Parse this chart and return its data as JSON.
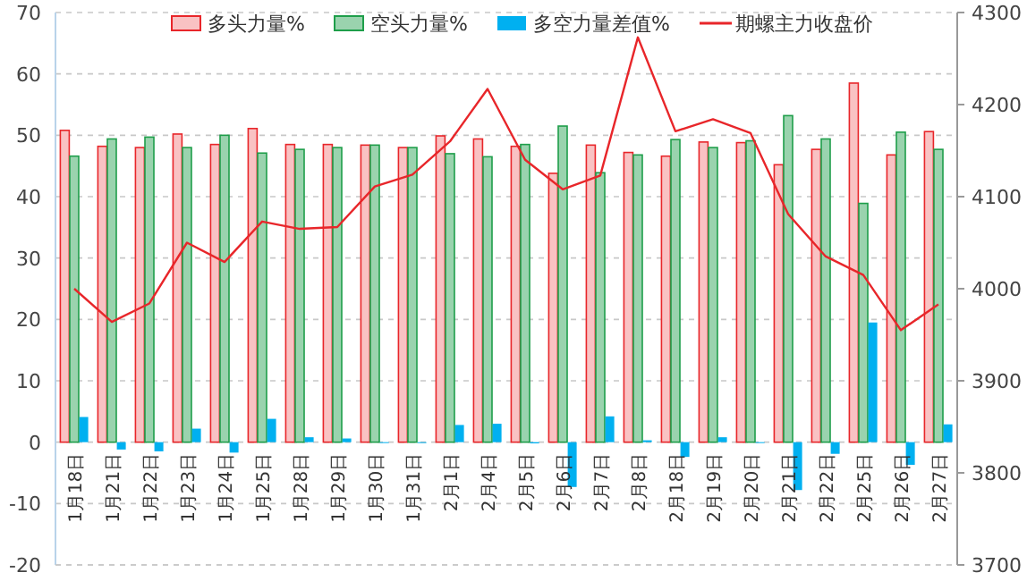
{
  "chart_data": {
    "type": "bar",
    "categories": [
      "1月18日",
      "1月21日",
      "1月22日",
      "1月23日",
      "1月24日",
      "1月25日",
      "1月28日",
      "1月29日",
      "1月30日",
      "1月31日",
      "2月1日",
      "2月4日",
      "2月5日",
      "2月6日",
      "2月7日",
      "2月8日",
      "2月18日",
      "2月19日",
      "2月20日",
      "2月21日",
      "2月22日",
      "2月25日",
      "2月26日",
      "2月27日"
    ],
    "series": [
      {
        "name": "多头力量%",
        "color": "#e8262a",
        "values": [
          50.8,
          48.2,
          48.0,
          50.2,
          48.5,
          51.1,
          48.5,
          48.5,
          48.4,
          48.0,
          49.9,
          49.4,
          48.2,
          43.8,
          48.4,
          47.2,
          46.6,
          48.9,
          48.8,
          45.2,
          47.7,
          58.5,
          46.8,
          50.6
        ]
      },
      {
        "name": "空头力量%",
        "color": "#1e9e4a",
        "values": [
          46.6,
          49.4,
          49.7,
          48.0,
          50.0,
          47.1,
          47.7,
          48.0,
          48.4,
          48.0,
          47.0,
          46.5,
          48.5,
          51.5,
          43.9,
          46.8,
          49.3,
          48.0,
          49.1,
          53.2,
          49.4,
          38.9,
          50.5,
          47.7
        ]
      },
      {
        "name": "多空力量差值%",
        "color": "#00b0f0",
        "values": [
          4.1,
          -1.2,
          -1.5,
          2.2,
          -1.7,
          3.8,
          0.8,
          0.6,
          -0.1,
          0.0,
          2.8,
          3.0,
          -0.2,
          -7.3,
          4.2,
          0.3,
          -2.4,
          0.8,
          -0.1,
          -7.8,
          -1.9,
          19.5,
          -3.7,
          2.9
        ]
      },
      {
        "name": "期螺主力收盘价",
        "color": "#e8262a",
        "type": "line",
        "axis": "y2",
        "values": [
          4000,
          3964,
          3984,
          4050,
          4029,
          4073,
          4065,
          4067,
          4111,
          4124,
          4160,
          4217,
          4140,
          4108,
          4123,
          4273,
          4171,
          4184,
          4169,
          4081,
          4035,
          4015,
          3955,
          3983
        ]
      }
    ],
    "ylim": [
      -20,
      70
    ],
    "yticks": [
      -20,
      -10,
      0,
      10,
      20,
      30,
      40,
      50,
      60,
      70
    ],
    "y2lim": [
      3700,
      4300
    ],
    "y2ticks": [
      3700,
      3800,
      3900,
      4000,
      4100,
      4200,
      4300
    ],
    "grid": "y",
    "legend": "top"
  }
}
